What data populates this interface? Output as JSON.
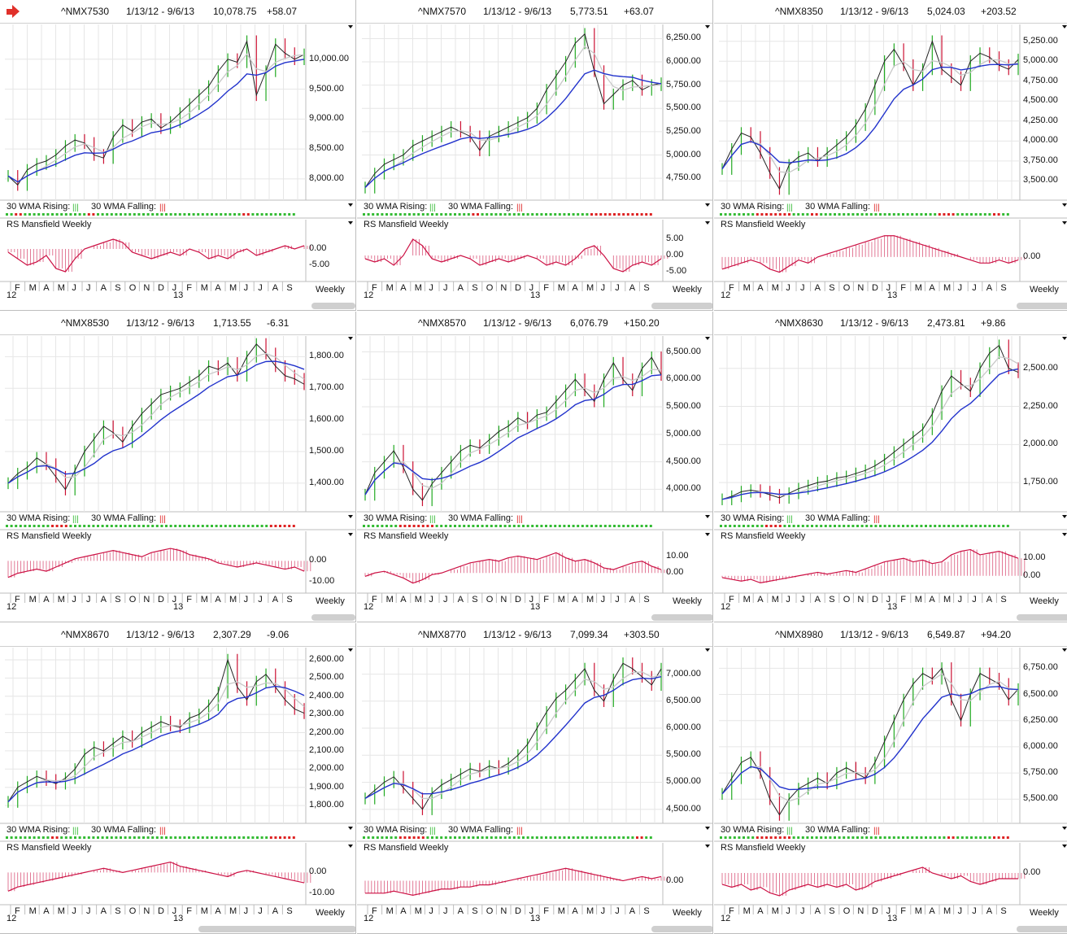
{
  "app": {
    "alert_icon": "red-right-arrow-icon"
  },
  "colors": {
    "up": "#22aa22",
    "down": "#cc1133",
    "ma_fast": "#c8c8c8",
    "ma_slow": "#2233cc",
    "rs": "#cc1144",
    "grid": "#e6e6e6",
    "rising": "#33bb33",
    "falling": "#dd2222"
  },
  "common": {
    "date_range": "1/13/12 - 9/6/13",
    "wma_rising": "30 WMA Rising:",
    "wma_falling": "30 WMA Falling:",
    "rs_title": "RS Mansfield Weekly",
    "period": "Weekly",
    "year_left": "12",
    "year_right": "13",
    "months": [
      "F",
      "M",
      "A",
      "M",
      "J",
      "J",
      "A",
      "S",
      "O",
      "N",
      "D",
      "J",
      "F",
      "M",
      "A",
      "M",
      "J",
      "J",
      "A",
      "S"
    ]
  },
  "chart_data": [
    {
      "type": "line",
      "symbol": "^NMX7530",
      "price": "10,078.75",
      "change": "+58.07",
      "yticks": [
        "10,000.00",
        "9,500.00",
        "9,000.00",
        "8,500.00",
        "8,000.00"
      ],
      "ylim": [
        7700,
        10500
      ],
      "series": [
        {
          "values": [
            8050,
            7900,
            8150,
            8250,
            8300,
            8400,
            8550,
            8650,
            8600,
            8400,
            8350,
            8700,
            8900,
            8800,
            8950,
            9000,
            8850,
            8950,
            9100,
            9250,
            9400,
            9550,
            9800,
            10000,
            9950,
            10300,
            9400,
            9800,
            10250,
            10100,
            10000,
            10080
          ]
        }
      ],
      "rs_ticks": [
        "0.00",
        "-5.00"
      ],
      "rs_ylim": [
        -9,
        5
      ],
      "rs": [
        -1,
        -3,
        -5,
        -4,
        -2,
        -6,
        -7,
        -3,
        0,
        1,
        2,
        3,
        2,
        -1,
        -2,
        -3,
        -2,
        -1,
        -2,
        0,
        -1,
        -3,
        -2,
        -3,
        -1,
        0,
        -2,
        -1,
        0,
        1,
        0,
        1
      ]
    },
    {
      "type": "line",
      "symbol": "^NMX7570",
      "price": "5,773.51",
      "change": "+63.07",
      "yticks": [
        "6,250.00",
        "6,000.00",
        "5,750.00",
        "5,500.00",
        "5,250.00",
        "5,000.00",
        "4,750.00"
      ],
      "ylim": [
        4550,
        6350
      ],
      "series": [
        {
          "values": [
            4650,
            4800,
            4900,
            4950,
            5000,
            5100,
            5150,
            5200,
            5250,
            5300,
            5250,
            5200,
            5050,
            5200,
            5250,
            5300,
            5350,
            5400,
            5500,
            5700,
            5850,
            6000,
            6200,
            6300,
            5900,
            5550,
            5650,
            5750,
            5800,
            5700,
            5750,
            5770
          ]
        }
      ],
      "rs_ticks": [
        "5.00",
        "0.00",
        "-5.00"
      ],
      "rs_ylim": [
        -7,
        7
      ],
      "rs": [
        -1,
        -2,
        -1,
        -3,
        0,
        5,
        3,
        -1,
        -2,
        -1,
        0,
        -1,
        -3,
        -2,
        -1,
        -2,
        -1,
        0,
        -1,
        -3,
        -2,
        -3,
        -1,
        2,
        3,
        0,
        -4,
        -5,
        -3,
        -2,
        -3,
        -1
      ]
    },
    {
      "type": "line",
      "symbol": "^NMX8350",
      "price": "5,024.03",
      "change": "+203.52",
      "yticks": [
        "5,250.00",
        "5,000.00",
        "4,750.00",
        "4,500.00",
        "4,250.00",
        "4,000.00",
        "3,750.00",
        "3,500.00"
      ],
      "ylim": [
        3300,
        5400
      ],
      "series": [
        {
          "values": [
            3650,
            3900,
            4100,
            4050,
            3850,
            3600,
            3400,
            3700,
            3800,
            3850,
            3750,
            3850,
            3950,
            4050,
            4200,
            4400,
            4700,
            5000,
            5150,
            4950,
            4700,
            4900,
            5250,
            4900,
            4800,
            4700,
            5000,
            5100,
            5050,
            4950,
            4900,
            5020
          ]
        }
      ],
      "rs_ticks": [
        "0.00"
      ],
      "rs_ylim": [
        -7,
        8
      ],
      "rs": [
        -4,
        -3,
        -2,
        -1,
        -2,
        -4,
        -5,
        -3,
        -1,
        -2,
        0,
        1,
        2,
        3,
        4,
        5,
        6,
        7,
        7,
        6,
        5,
        4,
        3,
        2,
        1,
        0,
        -1,
        -2,
        -2,
        -1,
        -2,
        -1
      ]
    },
    {
      "type": "line",
      "symbol": "^NMX8530",
      "price": "1,713.55",
      "change": "-6.31",
      "yticks": [
        "1,800.00",
        "1,700.00",
        "1,600.00",
        "1,500.00",
        "1,400.00"
      ],
      "ylim": [
        1320,
        1850
      ],
      "series": [
        {
          "values": [
            1400,
            1430,
            1450,
            1480,
            1460,
            1420,
            1380,
            1440,
            1500,
            1540,
            1580,
            1560,
            1530,
            1580,
            1620,
            1650,
            1680,
            1690,
            1700,
            1720,
            1740,
            1770,
            1760,
            1780,
            1740,
            1800,
            1840,
            1810,
            1770,
            1740,
            1730,
            1713
          ]
        }
      ],
      "rs_ticks": [
        "0.00",
        "-10.00"
      ],
      "rs_ylim": [
        -14,
        8
      ],
      "rs": [
        -8,
        -6,
        -5,
        -4,
        -5,
        -3,
        -1,
        1,
        2,
        3,
        4,
        5,
        4,
        3,
        2,
        4,
        5,
        6,
        5,
        3,
        2,
        1,
        -1,
        -2,
        -3,
        -2,
        -1,
        -2,
        -3,
        -4,
        -3,
        -5
      ]
    },
    {
      "type": "line",
      "symbol": "^NMX8570",
      "price": "6,076.79",
      "change": "+150.20",
      "yticks": [
        "6,500.00",
        "6,000.00",
        "5,500.00",
        "5,000.00",
        "4,500.00",
        "4,000.00"
      ],
      "ylim": [
        3650,
        6700
      ],
      "series": [
        {
          "values": [
            3900,
            4300,
            4500,
            4700,
            4400,
            4000,
            3800,
            4100,
            4300,
            4500,
            4700,
            4800,
            4750,
            4900,
            5050,
            5150,
            5300,
            5200,
            5350,
            5400,
            5600,
            5800,
            6000,
            5800,
            5600,
            6000,
            6300,
            6000,
            5800,
            6200,
            6400,
            6080
          ]
        }
      ],
      "rs_ticks": [
        "10.00",
        "0.00"
      ],
      "rs_ylim": [
        -10,
        17
      ],
      "rs": [
        -2,
        0,
        1,
        -1,
        -3,
        -6,
        -4,
        -1,
        0,
        2,
        4,
        6,
        7,
        8,
        7,
        9,
        10,
        9,
        8,
        10,
        12,
        9,
        7,
        8,
        6,
        3,
        2,
        4,
        6,
        7,
        4,
        2
      ]
    },
    {
      "type": "line",
      "symbol": "^NMX8630",
      "price": "2,473.81",
      "change": "+9.86",
      "yticks": [
        "2,500.00",
        "2,250.00",
        "2,000.00",
        "1,750.00"
      ],
      "ylim": [
        1580,
        2680
      ],
      "series": [
        {
          "values": [
            1640,
            1660,
            1690,
            1700,
            1690,
            1670,
            1650,
            1680,
            1710,
            1730,
            1750,
            1760,
            1780,
            1790,
            1810,
            1830,
            1860,
            1900,
            1950,
            2000,
            2050,
            2100,
            2200,
            2350,
            2450,
            2400,
            2350,
            2500,
            2600,
            2650,
            2500,
            2474
          ]
        }
      ],
      "rs_ticks": [
        "10.00",
        "0.00"
      ],
      "rs_ylim": [
        -8,
        18
      ],
      "rs": [
        -1,
        -2,
        -3,
        -2,
        -4,
        -3,
        -2,
        -1,
        0,
        1,
        2,
        1,
        2,
        3,
        2,
        4,
        6,
        8,
        9,
        10,
        8,
        9,
        7,
        8,
        12,
        14,
        15,
        12,
        13,
        14,
        12,
        10
      ]
    },
    {
      "type": "line",
      "symbol": "^NMX8670",
      "price": "2,307.29",
      "change": "-9.06",
      "yticks": [
        "2,600.00",
        "2,500.00",
        "2,400.00",
        "2,300.00",
        "2,200.00",
        "2,100.00",
        "2,000.00",
        "1,900.00",
        "1,800.00"
      ],
      "ylim": [
        1720,
        2640
      ],
      "series": [
        {
          "values": [
            1820,
            1900,
            1930,
            1960,
            1940,
            1920,
            1950,
            2000,
            2080,
            2120,
            2100,
            2140,
            2180,
            2150,
            2200,
            2230,
            2260,
            2240,
            2230,
            2280,
            2300,
            2350,
            2420,
            2600,
            2450,
            2380,
            2480,
            2520,
            2450,
            2380,
            2330,
            2307
          ]
        }
      ],
      "rs_ticks": [
        "0.00",
        "-10.00"
      ],
      "rs_ylim": [
        -14,
        8
      ],
      "rs": [
        -9,
        -7,
        -6,
        -5,
        -4,
        -3,
        -2,
        -1,
        0,
        1,
        2,
        1,
        0,
        1,
        2,
        3,
        4,
        5,
        3,
        2,
        1,
        0,
        -1,
        -2,
        0,
        1,
        0,
        -1,
        -2,
        -3,
        -4,
        -5
      ]
    },
    {
      "type": "line",
      "symbol": "^NMX8770",
      "price": "7,099.34",
      "change": "+303.50",
      "yticks": [
        "7,000.00",
        "6,500.00",
        "6,000.00",
        "5,500.00",
        "5,000.00",
        "4,500.00"
      ],
      "ylim": [
        4300,
        7400
      ],
      "series": [
        {
          "values": [
            4700,
            4850,
            5000,
            5100,
            4900,
            4700,
            4500,
            4800,
            4950,
            5050,
            5150,
            5250,
            5200,
            5300,
            5250,
            5350,
            5500,
            5700,
            6000,
            6300,
            6550,
            6700,
            6900,
            7100,
            6700,
            6500,
            6900,
            7200,
            7100,
            6950,
            6800,
            7099
          ]
        }
      ],
      "rs_ticks": [
        "0.00"
      ],
      "rs_ylim": [
        -10,
        12
      ],
      "rs": [
        -6,
        -6,
        -6,
        -5,
        -6,
        -7,
        -6,
        -5,
        -4,
        -4,
        -3,
        -3,
        -2,
        -2,
        -1,
        0,
        1,
        2,
        3,
        4,
        5,
        6,
        5,
        4,
        3,
        2,
        1,
        0,
        1,
        2,
        1,
        2
      ]
    },
    {
      "type": "line",
      "symbol": "^NMX8980",
      "price": "6,549.87",
      "change": "+94.20",
      "yticks": [
        "6,750.00",
        "6,500.00",
        "6,250.00",
        "6,000.00",
        "5,750.00",
        "5,500.00"
      ],
      "ylim": [
        5300,
        6900
      ],
      "series": [
        {
          "values": [
            5550,
            5700,
            5850,
            5900,
            5750,
            5500,
            5350,
            5500,
            5600,
            5650,
            5700,
            5650,
            5750,
            5800,
            5750,
            5700,
            5850,
            6050,
            6250,
            6450,
            6600,
            6700,
            6650,
            6750,
            6450,
            6250,
            6500,
            6700,
            6650,
            6600,
            6450,
            6550
          ]
        }
      ],
      "rs_ticks": [
        "0.00"
      ],
      "rs_ylim": [
        -10,
        6
      ],
      "rs": [
        -4,
        -5,
        -4,
        -6,
        -5,
        -7,
        -8,
        -6,
        -5,
        -4,
        -5,
        -4,
        -5,
        -4,
        -6,
        -5,
        -3,
        -2,
        -1,
        0,
        1,
        2,
        0,
        -1,
        -2,
        -1,
        -3,
        -4,
        -3,
        -2,
        -2,
        -2
      ]
    }
  ]
}
